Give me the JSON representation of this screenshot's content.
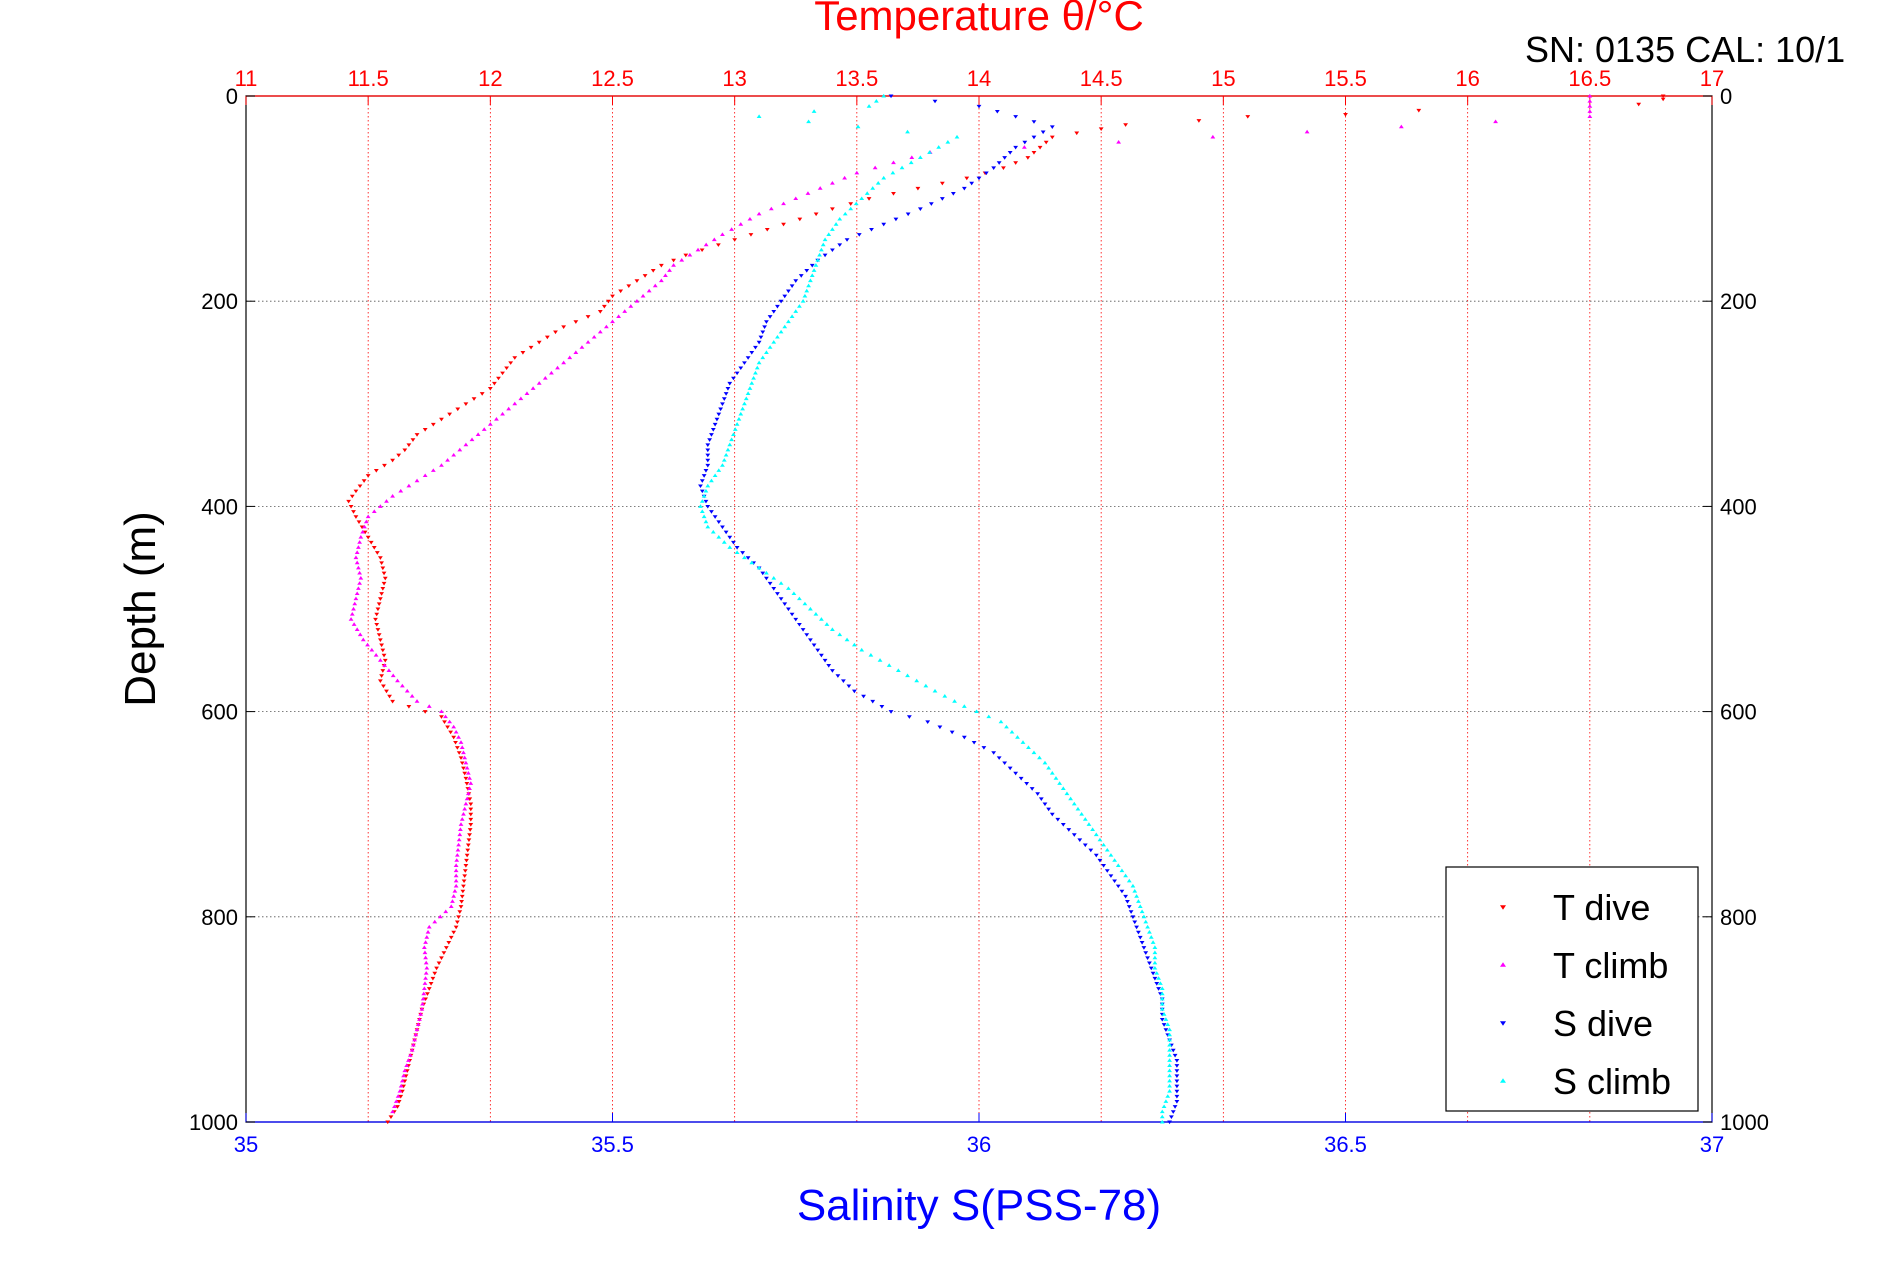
{
  "header": {
    "serial_cal": "SN: 0135  CAL: 10/1"
  },
  "chart_data": {
    "type": "scatter",
    "top_axis": {
      "label": "Temperature θ/°C",
      "range": [
        11,
        17
      ],
      "ticks": [
        "11",
        "11.5",
        "12",
        "12.5",
        "13",
        "13.5",
        "14",
        "14.5",
        "15",
        "15.5",
        "16",
        "16.5",
        "17"
      ],
      "color": "#ff0000"
    },
    "bottom_axis": {
      "label": "Salinity S(PSS-78)",
      "range": [
        35,
        37
      ],
      "ticks": [
        "35",
        "35.5",
        "36",
        "36.5",
        "37"
      ],
      "color": "#0000ff"
    },
    "y_axis": {
      "label": "Depth (m)",
      "range": [
        0,
        1000
      ],
      "inverted": true,
      "ticks": [
        "0",
        "200",
        "400",
        "600",
        "800",
        "1000"
      ]
    },
    "grid": true,
    "legend_position": "bottom-right",
    "series": [
      {
        "name": "T dive",
        "axis": "top",
        "color": "#ff0000",
        "marker": "triangle-down",
        "points": [
          [
            16.8,
            0
          ],
          [
            16.8,
            3
          ],
          [
            16.7,
            8
          ],
          [
            15.8,
            14
          ],
          [
            15.5,
            18
          ],
          [
            15.1,
            20
          ],
          [
            14.9,
            24
          ],
          [
            14.6,
            28
          ],
          [
            14.5,
            32
          ],
          [
            14.3,
            40
          ],
          [
            14.25,
            50
          ],
          [
            14.2,
            60
          ],
          [
            14.1,
            70
          ],
          [
            13.95,
            80
          ],
          [
            13.75,
            90
          ],
          [
            13.55,
            100
          ],
          [
            13.4,
            110
          ],
          [
            13.2,
            125
          ],
          [
            13.0,
            140
          ],
          [
            12.8,
            155
          ],
          [
            12.7,
            165
          ],
          [
            12.6,
            180
          ],
          [
            12.5,
            195
          ],
          [
            12.45,
            210
          ],
          [
            12.3,
            225
          ],
          [
            12.2,
            240
          ],
          [
            12.1,
            255
          ],
          [
            12.05,
            270
          ],
          [
            12.0,
            285
          ],
          [
            11.9,
            300
          ],
          [
            11.8,
            315
          ],
          [
            11.7,
            330
          ],
          [
            11.65,
            345
          ],
          [
            11.6,
            355
          ],
          [
            11.5,
            370
          ],
          [
            11.45,
            385
          ],
          [
            11.42,
            395
          ],
          [
            11.45,
            410
          ],
          [
            11.5,
            430
          ],
          [
            11.55,
            450
          ],
          [
            11.57,
            470
          ],
          [
            11.55,
            490
          ],
          [
            11.53,
            510
          ],
          [
            11.55,
            530
          ],
          [
            11.57,
            550
          ],
          [
            11.55,
            570
          ],
          [
            11.6,
            590
          ],
          [
            11.8,
            605
          ],
          [
            11.85,
            625
          ],
          [
            11.88,
            645
          ],
          [
            11.9,
            665
          ],
          [
            11.92,
            690
          ],
          [
            11.92,
            710
          ],
          [
            11.91,
            730
          ],
          [
            11.9,
            750
          ],
          [
            11.89,
            770
          ],
          [
            11.88,
            790
          ],
          [
            11.86,
            810
          ],
          [
            11.82,
            830
          ],
          [
            11.78,
            850
          ],
          [
            11.75,
            870
          ],
          [
            11.72,
            890
          ],
          [
            11.7,
            910
          ],
          [
            11.68,
            930
          ],
          [
            11.66,
            950
          ],
          [
            11.64,
            970
          ],
          [
            11.62,
            985
          ],
          [
            11.58,
            1000
          ]
        ]
      },
      {
        "name": "T climb",
        "axis": "top",
        "color": "#ff00ff",
        "marker": "triangle-up",
        "points": [
          [
            16.5,
            0
          ],
          [
            16.5,
            10
          ],
          [
            16.5,
            20
          ],
          [
            13.8,
            55
          ],
          [
            13.5,
            75
          ],
          [
            13.3,
            95
          ],
          [
            13.1,
            115
          ],
          [
            12.95,
            135
          ],
          [
            12.85,
            150
          ],
          [
            12.75,
            165
          ],
          [
            12.7,
            180
          ],
          [
            12.6,
            200
          ],
          [
            12.5,
            220
          ],
          [
            12.4,
            240
          ],
          [
            12.3,
            260
          ],
          [
            12.2,
            280
          ],
          [
            12.1,
            300
          ],
          [
            12.0,
            320
          ],
          [
            11.9,
            340
          ],
          [
            11.8,
            360
          ],
          [
            11.7,
            375
          ],
          [
            11.6,
            390
          ],
          [
            11.5,
            410
          ],
          [
            11.47,
            430
          ],
          [
            11.45,
            450
          ],
          [
            11.47,
            470
          ],
          [
            11.45,
            490
          ],
          [
            11.43,
            510
          ],
          [
            11.48,
            530
          ],
          [
            11.55,
            550
          ],
          [
            11.62,
            570
          ],
          [
            11.7,
            590
          ],
          [
            11.8,
            600
          ],
          [
            11.85,
            615
          ],
          [
            11.88,
            630
          ],
          [
            11.9,
            650
          ],
          [
            11.92,
            670
          ],
          [
            11.9,
            690
          ],
          [
            11.88,
            710
          ],
          [
            11.87,
            730
          ],
          [
            11.86,
            750
          ],
          [
            11.86,
            770
          ],
          [
            11.84,
            790
          ],
          [
            11.75,
            810
          ],
          [
            11.73,
            830
          ],
          [
            11.74,
            850
          ],
          [
            11.73,
            870
          ],
          [
            11.72,
            890
          ],
          [
            11.7,
            910
          ],
          [
            11.68,
            930
          ],
          [
            11.65,
            950
          ],
          [
            11.63,
            970
          ],
          [
            11.6,
            990
          ]
        ]
      },
      {
        "name": "S dive",
        "axis": "bottom",
        "color": "#0000ff",
        "marker": "triangle-down",
        "points": [
          [
            35.88,
            0
          ],
          [
            36.0,
            10
          ],
          [
            36.05,
            20
          ],
          [
            36.1,
            30
          ],
          [
            36.05,
            50
          ],
          [
            36.02,
            70
          ],
          [
            35.98,
            90
          ],
          [
            35.92,
            110
          ],
          [
            35.87,
            125
          ],
          [
            35.82,
            140
          ],
          [
            35.78,
            160
          ],
          [
            35.75,
            180
          ],
          [
            35.73,
            200
          ],
          [
            35.71,
            220
          ],
          [
            35.7,
            240
          ],
          [
            35.68,
            260
          ],
          [
            35.66,
            280
          ],
          [
            35.65,
            300
          ],
          [
            35.64,
            320
          ],
          [
            35.63,
            340
          ],
          [
            35.63,
            360
          ],
          [
            35.62,
            380
          ],
          [
            35.63,
            400
          ],
          [
            35.65,
            420
          ],
          [
            35.67,
            440
          ],
          [
            35.7,
            460
          ],
          [
            35.72,
            480
          ],
          [
            35.74,
            500
          ],
          [
            35.76,
            520
          ],
          [
            35.78,
            540
          ],
          [
            35.8,
            560
          ],
          [
            35.83,
            580
          ],
          [
            35.88,
            600
          ],
          [
            35.93,
            610
          ],
          [
            35.98,
            625
          ],
          [
            36.02,
            640
          ],
          [
            36.05,
            660
          ],
          [
            36.08,
            680
          ],
          [
            36.1,
            700
          ],
          [
            36.13,
            720
          ],
          [
            36.16,
            740
          ],
          [
            36.18,
            760
          ],
          [
            36.2,
            780
          ],
          [
            36.21,
            800
          ],
          [
            36.22,
            820
          ],
          [
            36.23,
            840
          ],
          [
            36.24,
            860
          ],
          [
            36.25,
            880
          ],
          [
            36.25,
            900
          ],
          [
            36.26,
            920
          ],
          [
            36.27,
            940
          ],
          [
            36.27,
            960
          ],
          [
            36.27,
            980
          ],
          [
            36.26,
            1000
          ]
        ]
      },
      {
        "name": "S climb",
        "axis": "bottom",
        "color": "#00ffff",
        "marker": "triangle-up",
        "points": [
          [
            35.87,
            0
          ],
          [
            35.85,
            10
          ],
          [
            35.7,
            20
          ],
          [
            35.97,
            40
          ],
          [
            35.92,
            60
          ],
          [
            35.87,
            80
          ],
          [
            35.84,
            100
          ],
          [
            35.81,
            120
          ],
          [
            35.79,
            140
          ],
          [
            35.78,
            160
          ],
          [
            35.77,
            180
          ],
          [
            35.76,
            200
          ],
          [
            35.74,
            220
          ],
          [
            35.72,
            240
          ],
          [
            35.7,
            260
          ],
          [
            35.69,
            280
          ],
          [
            35.68,
            300
          ],
          [
            35.67,
            320
          ],
          [
            35.66,
            340
          ],
          [
            35.65,
            360
          ],
          [
            35.63,
            380
          ],
          [
            35.62,
            400
          ],
          [
            35.63,
            420
          ],
          [
            35.66,
            440
          ],
          [
            35.7,
            460
          ],
          [
            35.74,
            480
          ],
          [
            35.77,
            500
          ],
          [
            35.8,
            520
          ],
          [
            35.84,
            540
          ],
          [
            35.89,
            560
          ],
          [
            35.94,
            580
          ],
          [
            35.98,
            595
          ],
          [
            36.03,
            610
          ],
          [
            36.06,
            630
          ],
          [
            36.09,
            650
          ],
          [
            36.11,
            670
          ],
          [
            36.13,
            690
          ],
          [
            36.15,
            710
          ],
          [
            36.17,
            730
          ],
          [
            36.19,
            750
          ],
          [
            36.21,
            770
          ],
          [
            36.22,
            790
          ],
          [
            36.23,
            810
          ],
          [
            36.24,
            830
          ],
          [
            36.24,
            850
          ],
          [
            36.25,
            870
          ],
          [
            36.25,
            890
          ],
          [
            36.26,
            910
          ],
          [
            36.26,
            930
          ],
          [
            36.26,
            950
          ],
          [
            36.26,
            970
          ],
          [
            36.25,
            990
          ],
          [
            36.25,
            1000
          ]
        ]
      }
    ]
  }
}
